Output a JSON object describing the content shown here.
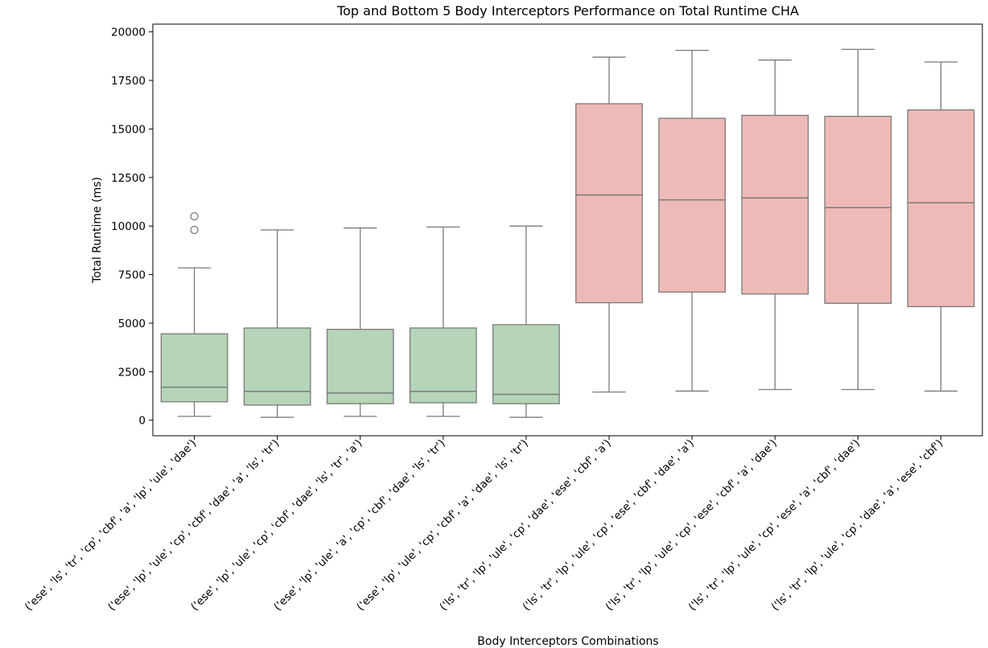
{
  "chart_data": {
    "type": "box",
    "title": "Top and Bottom 5 Body Interceptors Performance on Total Runtime CHA",
    "xlabel": "Body Interceptors Combinations",
    "ylabel": "Total Runtime (ms)",
    "ylim": [
      -800,
      20400
    ],
    "yticks": [
      0,
      2500,
      5000,
      7500,
      10000,
      12500,
      15000,
      17500,
      20000
    ],
    "ytick_labels": [
      "0",
      "2500",
      "5000",
      "7500",
      "10000",
      "12500",
      "15000",
      "17500",
      "20000"
    ],
    "grid": false,
    "colors": {
      "bottom_group": "#b5d4b8",
      "top_group": "#eebab7",
      "line": "#7a7a7a",
      "axis": "#000000"
    },
    "categories": [
      "('ese', 'ls', 'tr', 'cp', 'cbf', 'a', 'lp', 'ule', 'dae')",
      "('ese', 'lp', 'ule', 'cp', 'cbf', 'dae', 'a', 'ls', 'tr')",
      "('ese', 'lp', 'ule', 'cp', 'cbf', 'dae', 'ls', 'tr', 'a')",
      "('ese', 'lp', 'ule', 'a', 'cp', 'cbf', 'dae', 'ls', 'tr')",
      "('ese', 'lp', 'ule', 'cp', 'cbf', 'a', 'dae', 'ls', 'tr')",
      "('ls', 'tr', 'lp', 'ule', 'cp', 'dae', 'ese', 'cbf', 'a')",
      "('ls', 'tr', 'lp', 'ule', 'cp', 'ese', 'cbf', 'dae', 'a')",
      "('ls', 'tr', 'lp', 'ule', 'cp', 'ese', 'cbf', 'a', 'dae')",
      "('ls', 'tr', 'lp', 'ule', 'cp', 'ese', 'a', 'cbf', 'dae')",
      "('ls', 'tr', 'lp', 'ule', 'cp', 'dae', 'a', 'ese', 'cbf')"
    ],
    "boxes": [
      {
        "group": "bottom",
        "whisker_low": 200,
        "q1": 950,
        "median": 1700,
        "q3": 4450,
        "whisker_high": 7850,
        "outliers": [
          9800,
          10500
        ]
      },
      {
        "group": "bottom",
        "whisker_low": 150,
        "q1": 780,
        "median": 1480,
        "q3": 4750,
        "whisker_high": 9800,
        "outliers": []
      },
      {
        "group": "bottom",
        "whisker_low": 200,
        "q1": 850,
        "median": 1400,
        "q3": 4680,
        "whisker_high": 9900,
        "outliers": []
      },
      {
        "group": "bottom",
        "whisker_low": 200,
        "q1": 900,
        "median": 1480,
        "q3": 4750,
        "whisker_high": 9950,
        "outliers": []
      },
      {
        "group": "bottom",
        "whisker_low": 150,
        "q1": 850,
        "median": 1330,
        "q3": 4920,
        "whisker_high": 10000,
        "outliers": []
      },
      {
        "group": "top",
        "whisker_low": 1450,
        "q1": 6050,
        "median": 11600,
        "q3": 16300,
        "whisker_high": 18700,
        "outliers": []
      },
      {
        "group": "top",
        "whisker_low": 1500,
        "q1": 6600,
        "median": 11350,
        "q3": 15550,
        "whisker_high": 19050,
        "outliers": []
      },
      {
        "group": "top",
        "whisker_low": 1580,
        "q1": 6500,
        "median": 11450,
        "q3": 15700,
        "whisker_high": 18550,
        "outliers": []
      },
      {
        "group": "top",
        "whisker_low": 1580,
        "q1": 6020,
        "median": 10950,
        "q3": 15650,
        "whisker_high": 19100,
        "outliers": []
      },
      {
        "group": "top",
        "whisker_low": 1500,
        "q1": 5850,
        "median": 11200,
        "q3": 15980,
        "whisker_high": 18450,
        "outliers": []
      }
    ]
  }
}
